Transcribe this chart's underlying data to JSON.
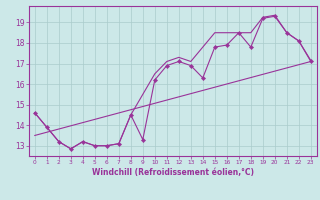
{
  "xlabel": "Windchill (Refroidissement éolien,°C)",
  "bg_color": "#cce8e8",
  "grid_color": "#aacccc",
  "line_color": "#993399",
  "xlim": [
    -0.5,
    23.5
  ],
  "ylim": [
    12.5,
    19.8
  ],
  "xticks": [
    0,
    1,
    2,
    3,
    4,
    5,
    6,
    7,
    8,
    9,
    10,
    11,
    12,
    13,
    14,
    15,
    16,
    17,
    18,
    19,
    20,
    21,
    22,
    23
  ],
  "yticks": [
    13,
    14,
    15,
    16,
    17,
    18,
    19
  ],
  "main_x": [
    0,
    1,
    2,
    3,
    4,
    5,
    6,
    7,
    8,
    9,
    10,
    11,
    12,
    13,
    14,
    15,
    16,
    17,
    18,
    19,
    20,
    21,
    22,
    23
  ],
  "main_y": [
    14.6,
    13.9,
    13.2,
    12.85,
    13.2,
    13.0,
    13.0,
    13.1,
    14.5,
    13.3,
    16.2,
    16.9,
    17.1,
    16.9,
    16.3,
    17.8,
    17.9,
    18.5,
    17.8,
    19.2,
    19.3,
    18.5,
    18.1,
    17.1
  ],
  "upper_x": [
    0,
    2,
    3,
    4,
    5,
    6,
    7,
    8,
    10,
    11,
    12,
    13,
    15,
    16,
    17,
    18,
    19,
    20,
    21,
    22,
    23
  ],
  "upper_y": [
    14.6,
    13.2,
    12.85,
    13.2,
    13.0,
    13.0,
    13.1,
    14.5,
    16.5,
    17.1,
    17.3,
    17.1,
    18.5,
    18.5,
    18.5,
    18.5,
    19.25,
    19.35,
    18.5,
    18.1,
    17.15
  ],
  "trend_x": [
    0,
    23
  ],
  "trend_y": [
    13.5,
    17.1
  ]
}
